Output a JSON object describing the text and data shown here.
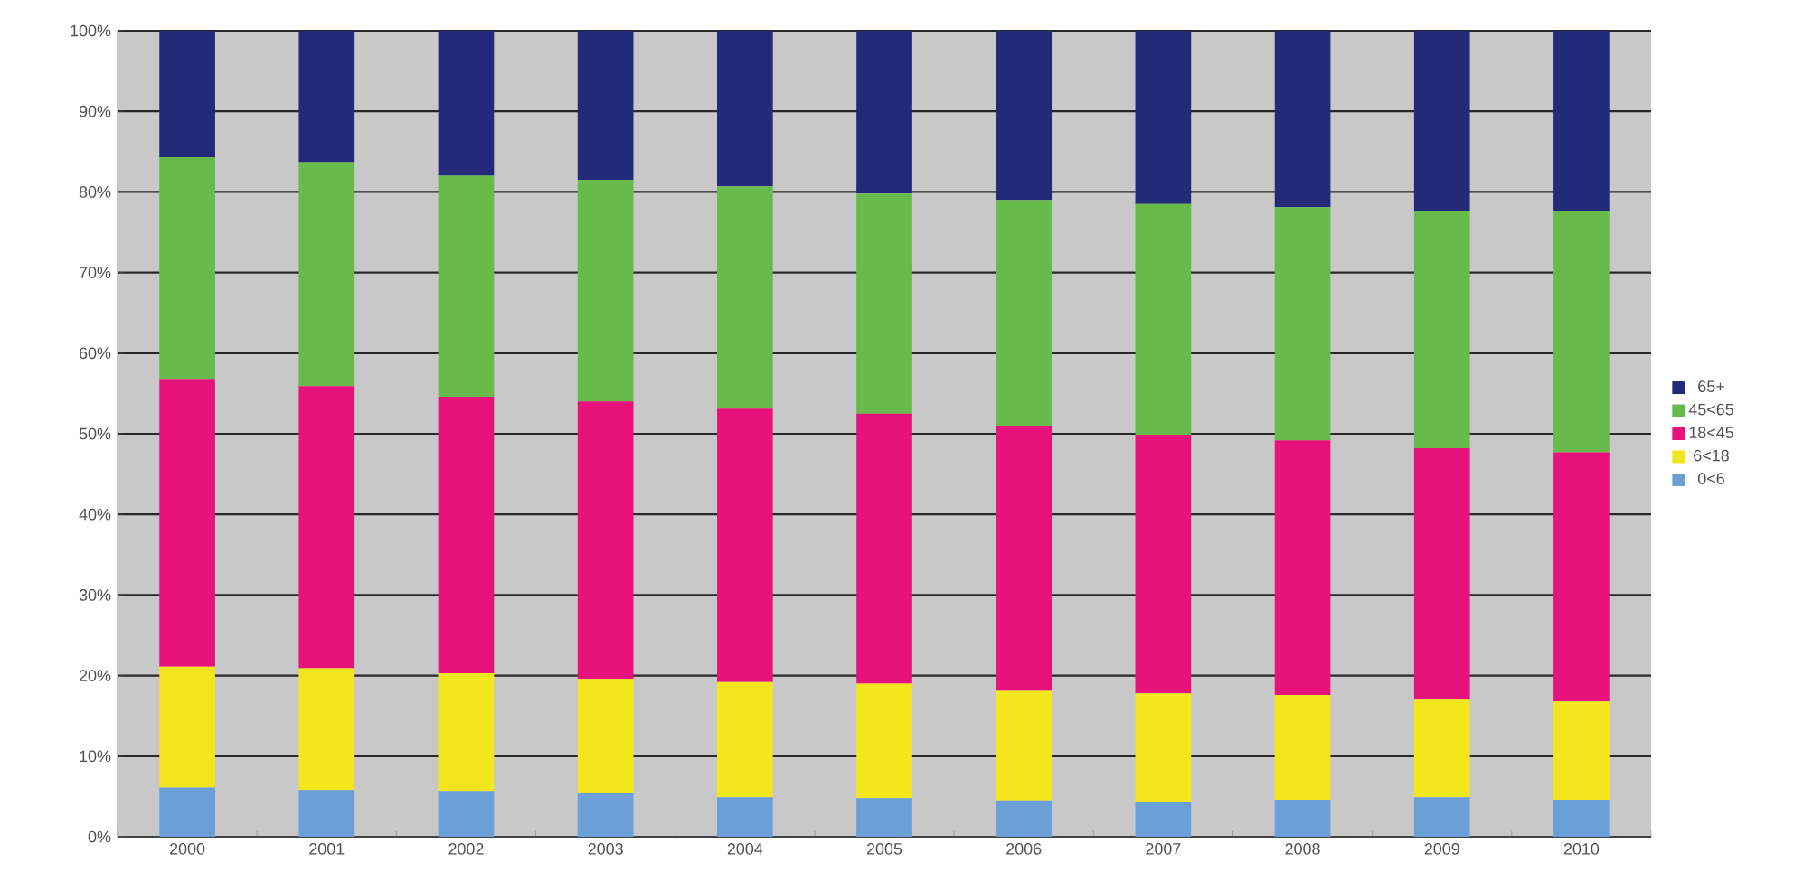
{
  "chart_data": {
    "type": "bar",
    "stacked": true,
    "categories": [
      "2000",
      "2001",
      "2002",
      "2003",
      "2004",
      "2005",
      "2006",
      "2007",
      "2008",
      "2009",
      "2010"
    ],
    "series": [
      {
        "name": "0<6",
        "color": "#6a9fd8",
        "values": [
          6.1,
          5.8,
          5.7,
          5.4,
          4.9,
          4.8,
          4.5,
          4.3,
          4.6,
          4.9,
          4.6
        ]
      },
      {
        "name": "6<18",
        "color": "#f3e61c",
        "values": [
          15.0,
          15.1,
          14.6,
          14.2,
          14.3,
          14.2,
          13.6,
          13.5,
          13.0,
          12.1,
          12.2
        ]
      },
      {
        "name": "18<45",
        "color": "#e8127c",
        "values": [
          35.7,
          35.0,
          34.3,
          34.4,
          33.9,
          33.5,
          32.9,
          32.1,
          31.6,
          31.2,
          30.9
        ]
      },
      {
        "name": "45<65",
        "color": "#66bb4a",
        "values": [
          27.5,
          27.8,
          27.4,
          27.5,
          27.6,
          27.3,
          28.0,
          28.6,
          28.9,
          29.5,
          30.0
        ]
      },
      {
        "name": "65+",
        "color": "#232a7a",
        "values": [
          15.7,
          16.3,
          18.0,
          18.5,
          19.3,
          20.2,
          21.0,
          21.5,
          21.9,
          22.3,
          22.3
        ]
      }
    ],
    "ylim": [
      0,
      100
    ],
    "yticks": [
      {
        "value": 0,
        "label": "0%"
      },
      {
        "value": 10,
        "label": "10%"
      },
      {
        "value": 20,
        "label": "20%"
      },
      {
        "value": 30,
        "label": "30%"
      },
      {
        "value": 40,
        "label": "40%"
      },
      {
        "value": 50,
        "label": "50%"
      },
      {
        "value": 60,
        "label": "60%"
      },
      {
        "value": 70,
        "label": "70%"
      },
      {
        "value": 80,
        "label": "80%"
      },
      {
        "value": 90,
        "label": "90%"
      },
      {
        "value": 100,
        "label": "100%"
      }
    ],
    "grid": "y",
    "legend": "right"
  }
}
